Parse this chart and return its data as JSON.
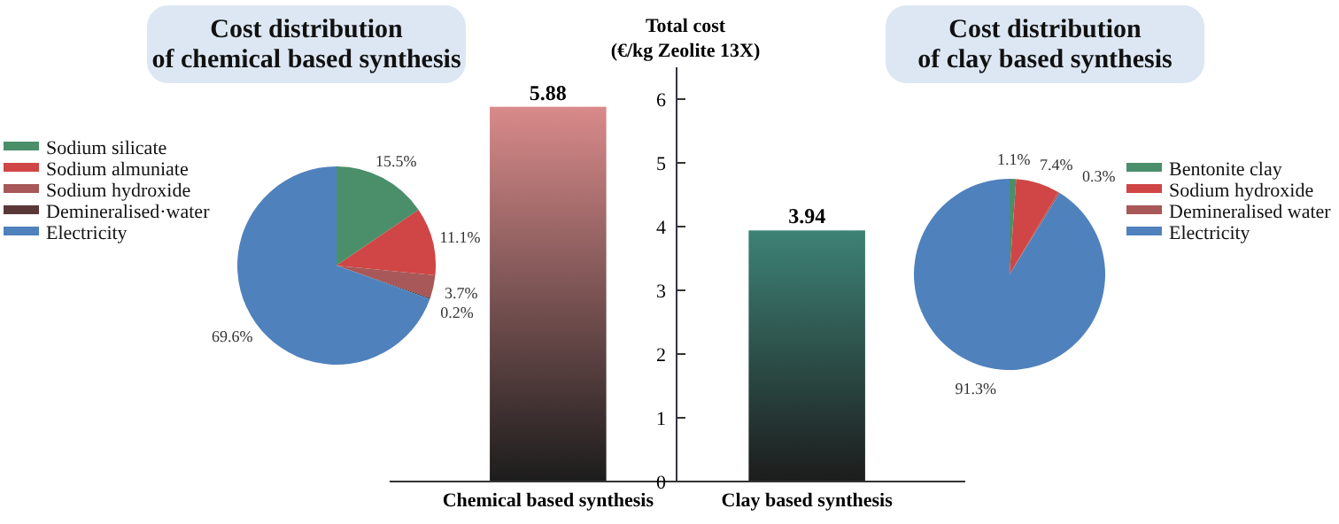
{
  "chart_data": [
    {
      "type": "pie",
      "title": "Cost distribution\nof chemical based synthesis",
      "categories": [
        "Sodium silicate",
        "Sodium almuniate",
        "Sodium hydroxide",
        "Demineralised·water",
        "Electricity"
      ],
      "values": [
        15.5,
        11.1,
        3.7,
        0.2,
        69.6
      ],
      "value_labels": [
        "15.5%",
        "11.1%",
        "3.7%",
        "0.2%",
        "69.6%"
      ],
      "colors": [
        "#4a8f6a",
        "#d04545",
        "#a85858",
        "#5a3838",
        "#4f81bd"
      ],
      "legend": "left"
    },
    {
      "type": "bar",
      "ylabel": "Total cost\n(€/kg Zeolite 13X)",
      "categories": [
        "Chemical based synthesis",
        "Clay based synthesis"
      ],
      "values": [
        5.88,
        3.94
      ],
      "colors": [
        "#d98a8a",
        "#3d8276"
      ],
      "ylim": [
        0,
        6.5
      ],
      "yticks": [
        0,
        1,
        2,
        3,
        4,
        5,
        6
      ],
      "data_labels": true
    },
    {
      "type": "pie",
      "title": "Cost distribution\nof clay based synthesis",
      "categories": [
        "Bentonite clay",
        "Sodium hydroxide",
        "Demineralised water",
        "Electricity"
      ],
      "values": [
        1.1,
        7.4,
        0.3,
        91.3
      ],
      "value_labels": [
        "1.1%",
        "7.4%",
        "0.3%",
        "91.3%"
      ],
      "colors": [
        "#4a8f6a",
        "#d04545",
        "#a85858",
        "#4f81bd"
      ],
      "legend": "right"
    }
  ]
}
